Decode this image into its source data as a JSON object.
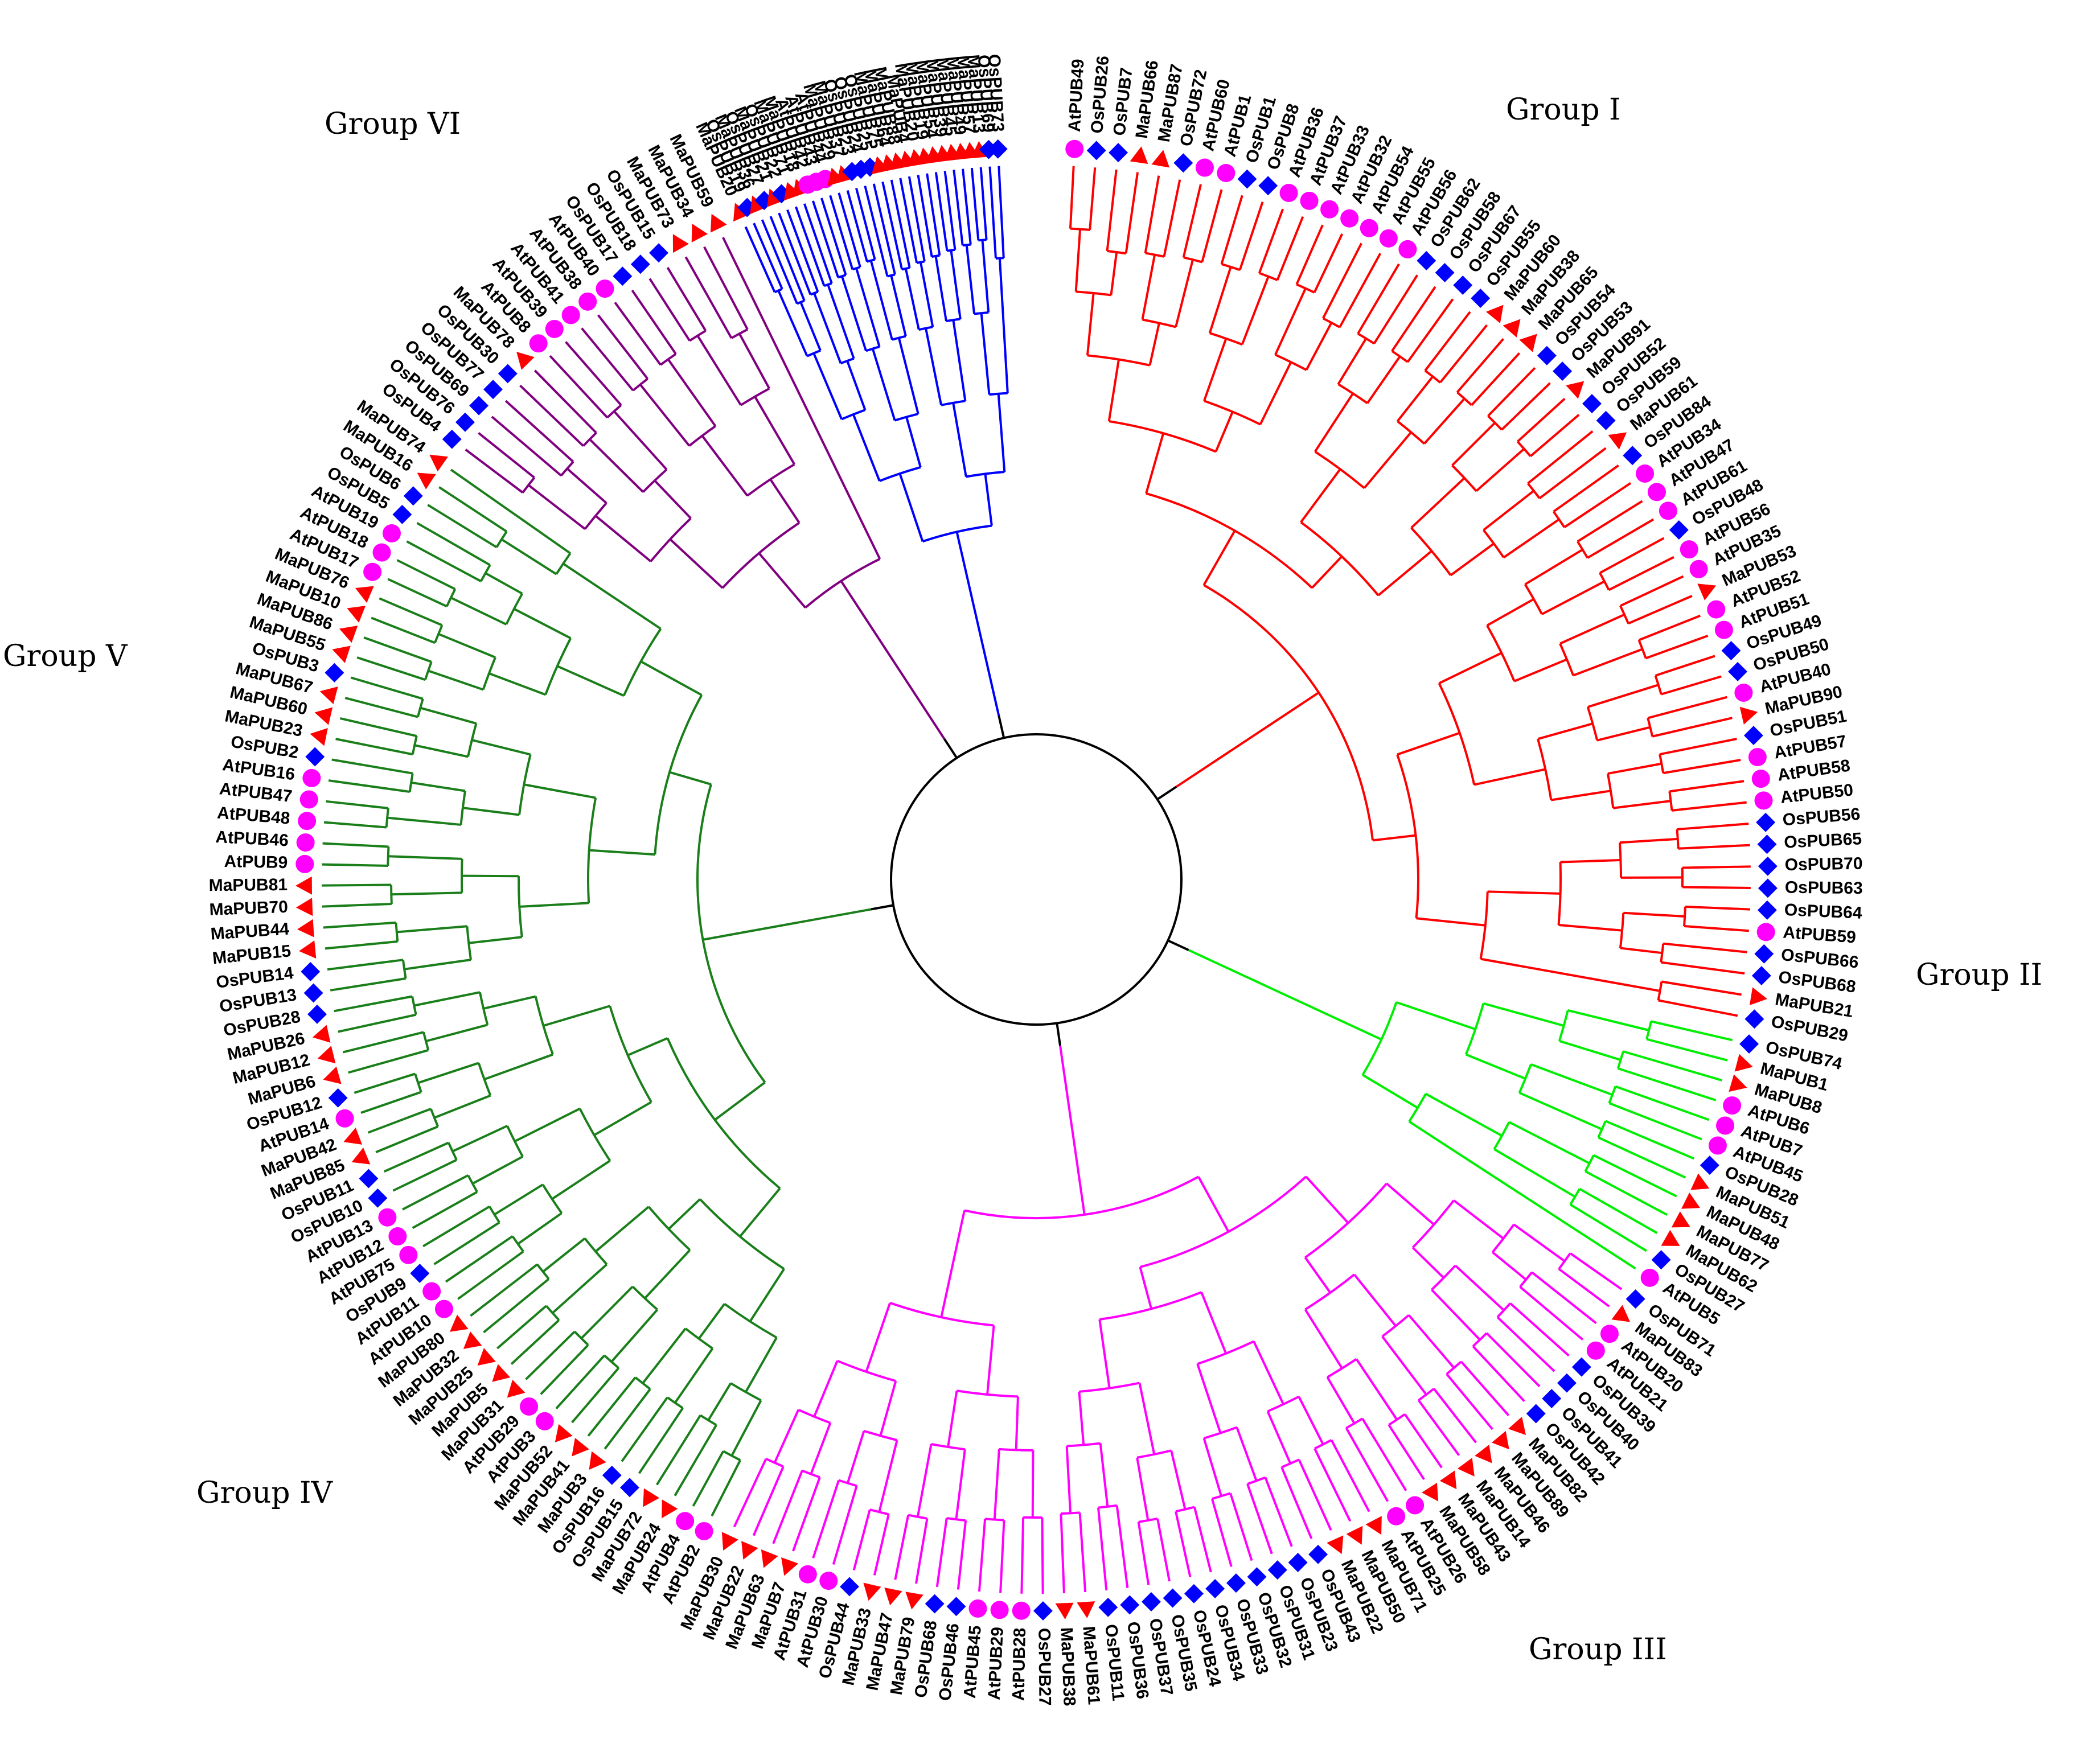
{
  "group_labels": [
    "Group I",
    "Group II",
    "Group III",
    "Group IV",
    "Group V",
    "Group VI"
  ],
  "groups": [
    {
      "name": "Group I",
      "color": "#ff0000",
      "leaves": [
        "AtPUB49",
        "OsPUB26",
        "OsPUB7",
        "MaPUB66",
        "MaPUB87",
        "OsPUB72",
        "AtPUB60",
        "AtPUB1",
        "OsPUB1",
        "OsPUB8",
        "AtPUB36",
        "AtPUB37",
        "AtPUB33",
        "AtPUB32",
        "AtPUB54",
        "AtPUB55",
        "AtPUB56",
        "OsPUB62",
        "OsPUB58",
        "OsPUB67",
        "OsPUB55",
        "MaPUB60",
        "MaPUB38",
        "MaPUB65",
        "OsPUB54",
        "OsPUB53",
        "MaPUB91",
        "OsPUB52",
        "OsPUB59",
        "MaPUB61",
        "OsPUB84",
        "AtPUB34",
        "AtPUB47",
        "AtPUB61",
        "OsPUB48",
        "AtPUB56",
        "AtPUB35",
        "MaPUB53",
        "AtPUB52",
        "AtPUB51",
        "OsPUB49",
        "OsPUB50",
        "AtPUB40",
        "MaPUB90",
        "OsPUB51",
        "AtPUB57",
        "AtPUB58",
        "AtPUB50",
        "OsPUB56",
        "OsPUB65",
        "OsPUB70",
        "OsPUB63",
        "OsPUB64",
        "AtPUB59",
        "OsPUB66",
        "OsPUB68",
        "MaPUB21",
        "OsPUB29"
      ]
    },
    {
      "name": "Group II",
      "color": "#00ee00",
      "leaves": [
        "OsPUB74",
        "MaPUB1",
        "MaPUB8",
        "AtPUB6",
        "AtPUB7",
        "AtPUB45",
        "OsPUB28",
        "MaPUB51",
        "MaPUB48",
        "MaPUB77",
        "MaPUB62",
        "OsPUB27",
        "AtPUB5"
      ]
    },
    {
      "name": "Group III",
      "color": "#ff00ff",
      "leaves": [
        "OsPUB71",
        "MaPUB83",
        "AtPUB20",
        "AtPUB21",
        "OsPUB39",
        "OsPUB40",
        "OsPUB41",
        "OsPUB42",
        "MaPUB82",
        "MaPUB89",
        "MaPUB46",
        "MaPUB14",
        "MaPUB43",
        "MaPUB58",
        "AtPUB26",
        "AtPUB25",
        "MaPUB71",
        "MaPUB50",
        "MaPUB22",
        "OsPUB43",
        "OsPUB23",
        "OsPUB31",
        "OsPUB32",
        "OsPUB33",
        "OsPUB34",
        "OsPUB24",
        "OsPUB35",
        "OsPUB37",
        "OsPUB36",
        "OsPUB11",
        "MaPUB61",
        "MaPUB38",
        "OsPUB27",
        "AtPUB28",
        "AtPUB29",
        "AtPUB45",
        "OsPUB46",
        "OsPUB68",
        "MaPUB79",
        "MaPUB47",
        "MaPUB33",
        "OsPUB44",
        "AtPUB30",
        "AtPUB31",
        "MaPUB7",
        "MaPUB63",
        "MaPUB22",
        "MaPUB30"
      ]
    },
    {
      "name": "Group IV",
      "color": "#1a7f1a",
      "leaves": [
        "AtPUB2",
        "AtPUB4",
        "MaPUB24",
        "MaPUB72",
        "OsPUB15",
        "OsPUB16",
        "MaPUB3",
        "MaPUB41",
        "MaPUB52",
        "AtPUB3",
        "AtPUB29",
        "MaPUB31",
        "MaPUB5",
        "MaPUB25",
        "MaPUB32",
        "MaPUB80",
        "AtPUB10",
        "AtPUB11",
        "OsPUB9",
        "AtPUB75",
        "AtPUB12",
        "AtPUB13",
        "OsPUB10",
        "OsPUB11",
        "MaPUB85",
        "MaPUB42",
        "AtPUB14",
        "OsPUB12",
        "MaPUB6",
        "MaPUB12",
        "MaPUB26",
        "OsPUB28",
        "OsPUB13",
        "OsPUB14",
        "MaPUB15",
        "MaPUB44",
        "MaPUB70",
        "MaPUB81",
        "AtPUB9",
        "AtPUB46",
        "AtPUB48",
        "AtPUB47",
        "AtPUB16",
        "OsPUB2",
        "MaPUB23",
        "MaPUB60",
        "MaPUB67",
        "OsPUB3",
        "MaPUB55",
        "MaPUB86",
        "MaPUB10",
        "MaPUB76",
        "AtPUB17",
        "AtPUB18",
        "AtPUB19",
        "OsPUB5",
        "OsPUB6",
        "MaPUB16",
        "MaPUB74"
      ]
    },
    {
      "name": "Group V",
      "color": "#800080",
      "leaves": [
        "OsPUB4",
        "OsPUB76",
        "OsPUB69",
        "OsPUB77",
        "OsPUB30",
        "MaPUB78",
        "AtPUB8",
        "AtPUB39",
        "AtPUB41",
        "AtPUB38",
        "AtPUB40",
        "OsPUB17",
        "OsPUB18",
        "OsPUB15",
        "MaPUB73",
        "MaPUB34",
        "MaPUB59"
      ]
    },
    {
      "name": "Group VI",
      "color": "#0000ff",
      "leaves": [
        "MaPUB20",
        "OsPUB19",
        "MaPUB36",
        "OsPUB27",
        "MaPUB21",
        "OsPUB22",
        "MaPUB71",
        "MaPUB18",
        "AtPUB42",
        "AtPUB43",
        "AtPUB44",
        "MaPUB29",
        "MaPUB37",
        "OsPUB23",
        "OsPUB24",
        "OsPUB25",
        "MaPUB75",
        "MaPUB64",
        "MaPUB88",
        "MaPUB4",
        "MaPUB20",
        "MaPUB19",
        "MaPUB54",
        "MaPUB39",
        "MaPUB45",
        "MaPUB49",
        "MaPUB57",
        "MaPUB13",
        "OsPUB69",
        "OsPUB73"
      ]
    }
  ],
  "markers": {
    "At": {
      "shape": "circle",
      "color": "#ff00ff"
    },
    "Os": {
      "shape": "diamond",
      "color": "#0000ff"
    },
    "Ma": {
      "shape": "triangle",
      "color": "#ff0000"
    }
  },
  "backbone_color": "#000000"
}
